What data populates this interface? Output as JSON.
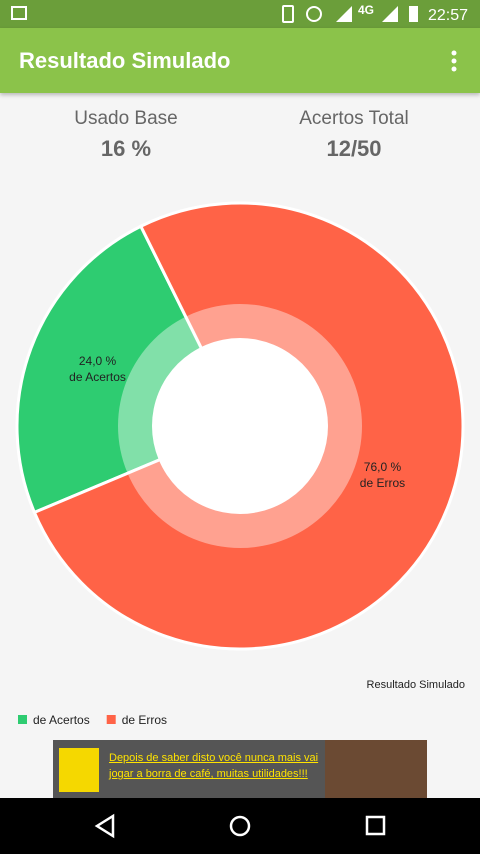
{
  "status_bar": {
    "network": "4G",
    "time": "22:57"
  },
  "app_bar": {
    "title": "Resultado Simulado"
  },
  "stats": [
    {
      "label": "Usado Base",
      "value": "16 %"
    },
    {
      "label": "Acertos Total",
      "value": "12/50"
    }
  ],
  "chart_data": {
    "type": "pie",
    "categories": [
      "de Acertos",
      "de Erros"
    ],
    "values": [
      24,
      76
    ],
    "value_labels": [
      "24,0 %",
      "76,0 %"
    ],
    "colors": [
      "#2ecc71",
      "#ff6347"
    ],
    "description": "Resultado Simulado",
    "legend": "bottom-left"
  },
  "ad": {
    "text": "Depois de saber disto você nunca mais vai jogar a borra de café, muitas utilidades!!!"
  }
}
